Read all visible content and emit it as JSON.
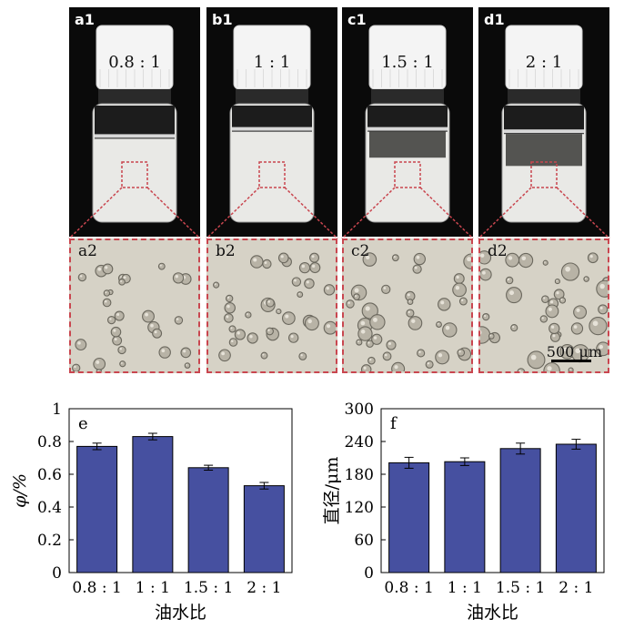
{
  "photos": [
    {
      "label": "a1",
      "ratio": "0.8 : 1",
      "sep": 0.28,
      "clear": 0.0
    },
    {
      "label": "b1",
      "ratio": "1 : 1",
      "sep": 0.22,
      "clear": 0.0
    },
    {
      "label": "c1",
      "ratio": "1.5 : 1",
      "sep": 0.22,
      "clear": 0.22
    },
    {
      "label": "d1",
      "ratio": "2 : 1",
      "sep": 0.24,
      "clear": 0.27
    }
  ],
  "micrographs": [
    {
      "label": "a2"
    },
    {
      "label": "b2"
    },
    {
      "label": "c2"
    },
    {
      "label": "d2"
    }
  ],
  "scale_bar_label": "500 μm",
  "chart_data": [
    {
      "type": "bar",
      "panel": "e",
      "categories": [
        "0.8 : 1",
        "1 : 1",
        "1.5 : 1",
        "2 : 1"
      ],
      "values": [
        0.77,
        0.83,
        0.64,
        0.53
      ],
      "errors": [
        0.02,
        0.02,
        0.015,
        0.02
      ],
      "xlabel": "油水比",
      "ylabel": "φ/%",
      "ylim": [
        0,
        1
      ],
      "yticks": [
        0,
        0.2,
        0.4,
        0.6,
        0.8,
        1
      ],
      "ytick_labels": [
        "0",
        "0.2",
        "0.4",
        "0.6",
        "0.8",
        "1"
      ],
      "bar_color": "#4650a0"
    },
    {
      "type": "bar",
      "panel": "f",
      "categories": [
        "0.8 : 1",
        "1 : 1",
        "1.5 : 1",
        "2 : 1"
      ],
      "values": [
        201,
        203,
        227,
        235
      ],
      "errors": [
        10,
        7,
        10,
        9
      ],
      "xlabel": "油水比",
      "ylabel": "直径/μm",
      "ylim": [
        0,
        300
      ],
      "yticks": [
        0,
        60,
        120,
        180,
        240,
        300
      ],
      "ytick_labels": [
        "0",
        "60",
        "120",
        "180",
        "240",
        "300"
      ],
      "bar_color": "#4650a0"
    }
  ]
}
